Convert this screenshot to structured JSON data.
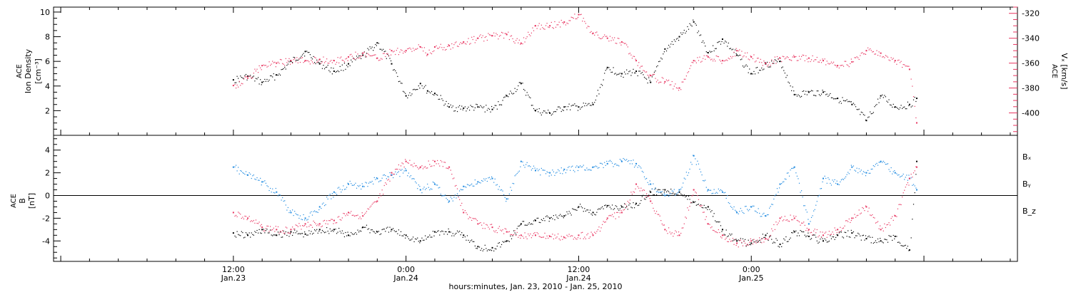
{
  "chart_data": [
    {
      "type": "scatter",
      "panel": "top",
      "left_axis_label": [
        "ACE",
        "Ion Density",
        "[cm⁻³]"
      ],
      "right_axis_label": [
        "ACE",
        "Vₓ [km/s]"
      ],
      "left_ylim": [
        0,
        10.4
      ],
      "left_ticks": [
        2,
        4,
        6,
        8,
        10
      ],
      "right_ylim": [
        -418,
        -315
      ],
      "right_ticks": [
        -320,
        -340,
        -360,
        -380,
        -400
      ],
      "grid": false,
      "colors": {
        "density": "#000000",
        "vx": "#e8335f"
      },
      "series": [
        {
          "axis": "left",
          "color": "#000000",
          "x": [
            0,
            1,
            2,
            3,
            4,
            5,
            6,
            7,
            8,
            9,
            10,
            11,
            12,
            13,
            13.5,
            14,
            15,
            16,
            17,
            18,
            19,
            20,
            21,
            22,
            23,
            24,
            25,
            26,
            27,
            28,
            29,
            30,
            31,
            32,
            33,
            34,
            35,
            36,
            37,
            38,
            39,
            40,
            41,
            42,
            43,
            44,
            45,
            46,
            47,
            47.5
          ],
          "values": [
            4.5,
            4.8,
            4.3,
            4.9,
            6.0,
            6.8,
            5.8,
            5.2,
            5.8,
            6.5,
            7.5,
            5.8,
            3.2,
            4.2,
            3.6,
            3.4,
            2.3,
            2.2,
            2.3,
            2.1,
            3.2,
            4.2,
            2.0,
            1.8,
            2.3,
            2.3,
            2.5,
            5.5,
            5.0,
            5.2,
            4.3,
            7.0,
            8.0,
            9.2,
            6.7,
            7.8,
            6.5,
            5.0,
            5.8,
            6.0,
            3.3,
            3.5,
            3.5,
            3.0,
            2.5,
            1.2,
            3.2,
            2.3,
            2.5,
            3.0
          ]
        },
        {
          "axis": "right",
          "color": "#e8335f",
          "x": [
            0,
            1,
            2,
            3,
            4,
            5,
            6,
            7,
            8,
            9,
            10,
            11,
            12,
            13,
            13.5,
            14,
            15,
            16,
            17,
            18,
            19,
            20,
            21,
            22,
            23,
            24,
            25,
            26,
            27,
            28,
            29,
            30,
            31,
            32,
            33,
            34,
            35,
            36,
            37,
            38,
            39,
            40,
            41,
            42,
            43,
            44,
            45,
            46,
            47,
            47.5
          ],
          "values": [
            -378,
            -372,
            -362,
            -360,
            -358,
            -358,
            -357,
            -358,
            -355,
            -352,
            -356,
            -350,
            -350,
            -347,
            -353,
            -347,
            -346,
            -343,
            -340,
            -338,
            -337,
            -344,
            -330,
            -330,
            -327,
            -321,
            -336,
            -340,
            -343,
            -358,
            -370,
            -375,
            -380,
            -358,
            -355,
            -358,
            -350,
            -355,
            -360,
            -356,
            -355,
            -356,
            -358,
            -362,
            -359,
            -350,
            -352,
            -358,
            -365,
            -408
          ]
        }
      ]
    },
    {
      "type": "scatter",
      "panel": "bottom",
      "left_axis_label": [
        "ACE",
        "B",
        "[nT]"
      ],
      "ylim": [
        -5.8,
        5.3
      ],
      "ticks": [
        4,
        2,
        0,
        -2,
        -4
      ],
      "zero_line": true,
      "legend": "right",
      "grid": false,
      "series": [
        {
          "name": "Bₓ",
          "color": "#000000",
          "x": [
            0,
            1,
            2,
            3,
            4,
            5,
            6,
            7,
            8,
            9,
            10,
            11,
            12,
            13,
            14,
            15,
            16,
            17,
            18,
            19,
            20,
            21,
            22,
            23,
            24,
            25,
            26,
            27,
            28,
            29,
            30,
            31,
            32,
            33,
            34,
            35,
            36,
            37,
            38,
            39,
            40,
            41,
            42,
            43,
            44,
            45,
            46,
            47,
            47.5
          ],
          "values": [
            -3.3,
            -3.5,
            -3.0,
            -3.5,
            -3.2,
            -3.4,
            -3.0,
            -3.0,
            -3.5,
            -2.8,
            -3.2,
            -3.0,
            -3.5,
            -4.0,
            -3.2,
            -3.2,
            -3.5,
            -4.5,
            -4.6,
            -4.0,
            -2.5,
            -2.2,
            -2.0,
            -1.8,
            -1.0,
            -1.5,
            -0.9,
            -1.0,
            -0.7,
            0.3,
            0.5,
            0.3,
            -0.6,
            -1.0,
            -3.0,
            -4.0,
            -4.2,
            -3.5,
            -4.3,
            -3.2,
            -3.6,
            -4.0,
            -3.5,
            -3.3,
            -3.8,
            -4.0,
            -3.6,
            -4.8,
            3.0
          ]
        },
        {
          "name": "Bᵧ",
          "color": "#1f8ae0",
          "x": [
            0,
            1,
            2,
            3,
            4,
            5,
            6,
            7,
            8,
            9,
            10,
            11,
            12,
            13,
            14,
            15,
            16,
            17,
            18,
            19,
            20,
            21,
            22,
            23,
            24,
            25,
            26,
            27,
            28,
            29,
            30,
            31,
            32,
            33,
            34,
            35,
            36,
            37,
            38,
            39,
            40,
            41,
            42,
            43,
            44,
            45,
            46,
            47,
            47.5
          ],
          "values": [
            2.5,
            1.8,
            1.2,
            0.3,
            -1.5,
            -2.0,
            -1.0,
            0.3,
            1.0,
            0.8,
            1.5,
            1.8,
            2.2,
            0.5,
            1.0,
            -0.5,
            0.8,
            1.2,
            1.5,
            -0.3,
            3.0,
            2.2,
            2.0,
            2.3,
            2.5,
            2.5,
            2.8,
            3.0,
            2.8,
            1.0,
            0.0,
            0.5,
            3.5,
            0.5,
            0.3,
            -1.5,
            -1.0,
            -1.8,
            1.0,
            2.5,
            -2.5,
            1.5,
            1.0,
            2.5,
            2.0,
            3.0,
            2.0,
            1.5,
            0.5
          ]
        },
        {
          "name": "B_z",
          "color": "#e8335f",
          "x": [
            0,
            1,
            2,
            3,
            4,
            5,
            6,
            7,
            8,
            9,
            10,
            11,
            12,
            13,
            14,
            15,
            16,
            17,
            18,
            19,
            20,
            21,
            22,
            23,
            24,
            25,
            26,
            27,
            28,
            29,
            30,
            31,
            32,
            33,
            34,
            35,
            36,
            37,
            38,
            39,
            40,
            41,
            42,
            43,
            44,
            45,
            46,
            47,
            47.5
          ],
          "values": [
            -1.5,
            -2.0,
            -2.8,
            -3.0,
            -3.0,
            -2.5,
            -2.5,
            -2.2,
            -1.5,
            -1.8,
            -0.5,
            2.0,
            3.0,
            2.5,
            3.0,
            2.5,
            -1.5,
            -2.5,
            -2.8,
            -3.2,
            -3.5,
            -3.5,
            -3.6,
            -3.7,
            -3.5,
            -3.5,
            -2.0,
            -1.5,
            1.0,
            -0.5,
            -3.0,
            -3.5,
            0.5,
            -2.5,
            -3.5,
            -4.2,
            -4.0,
            -3.8,
            -2.0,
            -2.0,
            -3.0,
            -3.5,
            -3.0,
            -2.0,
            -1.0,
            -3.0,
            -1.8,
            1.5,
            2.5
          ]
        }
      ]
    }
  ],
  "x_axis": {
    "xlim": [
      -12.5,
      54.5
    ],
    "tick_labels": [
      {
        "x": 0,
        "time": "12:00",
        "date": "Jan.23"
      },
      {
        "x": 12,
        "time": "0:00",
        "date": "Jan.24"
      },
      {
        "x": 24,
        "time": "12:00",
        "date": "Jan.24"
      },
      {
        "x": 36,
        "time": "0:00",
        "date": "Jan.25"
      }
    ],
    "title": "hours:minutes, Jan. 23, 2010 - Jan. 25, 2010"
  }
}
